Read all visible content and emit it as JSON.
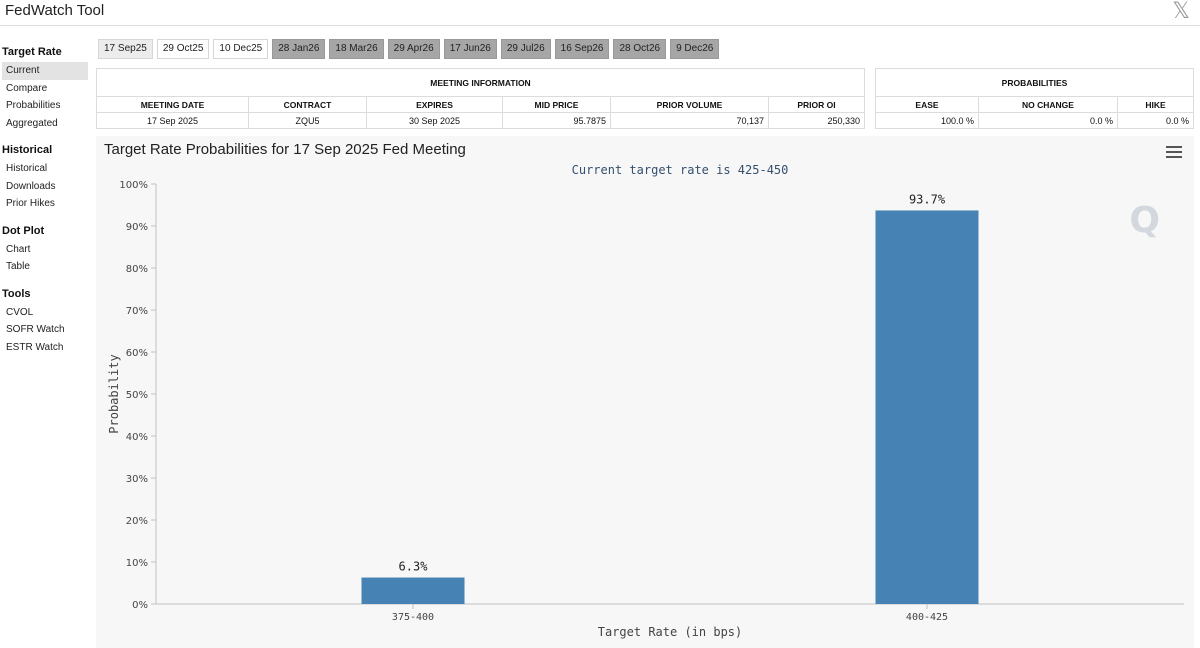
{
  "app": {
    "title": "FedWatch Tool",
    "close_glyph": "𝕏"
  },
  "sidebar": {
    "groups": [
      {
        "heading": "Target Rate",
        "items": [
          "Current",
          "Compare",
          "Probabilities",
          "Aggregated"
        ]
      },
      {
        "heading": "Historical",
        "items": [
          "Historical",
          "Downloads",
          "Prior Hikes"
        ]
      },
      {
        "heading": "Dot Plot",
        "items": [
          "Chart",
          "Table"
        ]
      },
      {
        "heading": "Tools",
        "items": [
          "CVOL",
          "SOFR Watch",
          "ESTR Watch"
        ]
      }
    ],
    "active_item": "Current"
  },
  "tabs": [
    "17 Sep25",
    "29 Oct25",
    "10 Dec25",
    "28 Jan26",
    "18 Mar26",
    "29 Apr26",
    "17 Jun26",
    "29 Jul26",
    "16 Sep26",
    "28 Oct26",
    "9 Dec26"
  ],
  "selected_tab": "17 Sep25",
  "meeting_info": {
    "heading": "MEETING INFORMATION",
    "columns": [
      "MEETING DATE",
      "CONTRACT",
      "EXPIRES",
      "MID PRICE",
      "PRIOR VOLUME",
      "PRIOR OI"
    ],
    "row": [
      "17 Sep 2025",
      "ZQU5",
      "30 Sep 2025",
      "95.7875",
      "70,137",
      "250,330"
    ]
  },
  "probabilities": {
    "heading": "PROBABILITIES",
    "columns": [
      "EASE",
      "NO CHANGE",
      "HIKE"
    ],
    "row": [
      "100.0 %",
      "0.0 %",
      "0.0 %"
    ]
  },
  "chart_data": {
    "type": "bar",
    "title": "Target Rate Probabilities for 17 Sep 2025 Fed Meeting",
    "subtitle": "Current target rate is 425-450",
    "xlabel": "Target Rate (in bps)",
    "ylabel": "Probability",
    "categories": [
      "375-400",
      "400-425"
    ],
    "values": [
      6.3,
      93.7
    ],
    "value_labels": [
      "6.3%",
      "93.7%"
    ],
    "ylim": [
      0,
      100
    ],
    "yticks": [
      "0%",
      "10%",
      "20%",
      "30%",
      "40%",
      "50%",
      "60%",
      "70%",
      "80%",
      "90%",
      "100%"
    ],
    "bar_color": "#4682b4",
    "grid": false,
    "legend": "none"
  },
  "icons": {
    "menu": "hamburger-menu-icon",
    "logo": "quikstrike-logo-icon",
    "close": "x-logo-icon"
  },
  "logo_text": "Q"
}
